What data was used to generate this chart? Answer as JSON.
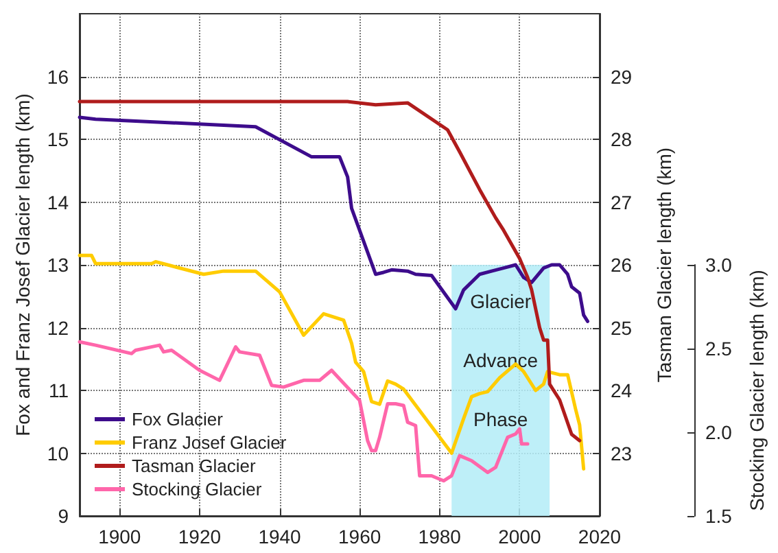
{
  "chart_data": {
    "type": "line",
    "ylabel": "Fox and Franz Josef Glacier length (km)",
    "y2label": "Tasman Glacier length (km)",
    "y3label": "Stocking Glacier length (km)",
    "xlim": [
      1890,
      2020
    ],
    "xticks": [
      1900,
      1920,
      1940,
      1960,
      1980,
      2000,
      2020
    ],
    "ylim": [
      9,
      17
    ],
    "yticks": [
      9,
      10,
      11,
      12,
      13,
      14,
      15,
      16
    ],
    "y2lim": [
      22,
      30
    ],
    "y2ticks": [
      23,
      24,
      25,
      26,
      27,
      28,
      29
    ],
    "y3lim": [
      1.5,
      3.0
    ],
    "y3ticks": [
      {
        "value": 1.5,
        "label": "1.5"
      },
      {
        "value": 2,
        "label": "2.0"
      },
      {
        "value": 2.5,
        "label": "2.5"
      },
      {
        "value": 3,
        "label": "3.0"
      }
    ],
    "grid": true,
    "legend": "bottom left",
    "marker": "none",
    "line_style": "solid",
    "bands": [
      {
        "axis": "x",
        "from": 1983,
        "to": 2007.5,
        "label": "Glacier Advance Phase",
        "color": "#b3ecf7"
      }
    ],
    "series": [
      {
        "name": "Fox Glacier",
        "color": "#3d0c8c",
        "x": [
          1890,
          1894,
          1934,
          1948,
          1955,
          1957,
          1958,
          1964,
          1966,
          1968,
          1972,
          1974,
          1978,
          1984,
          1986,
          1990,
          1993,
          1996,
          1999,
          2001,
          2003,
          2006,
          2008,
          2010,
          2012,
          2013,
          2015,
          2016,
          2017
        ],
        "values": [
          15.35,
          15.32,
          15.2,
          14.72,
          14.72,
          14.4,
          13.9,
          12.85,
          12.88,
          12.92,
          12.9,
          12.85,
          12.83,
          12.3,
          12.6,
          12.85,
          12.9,
          12.95,
          13.0,
          12.8,
          12.72,
          12.95,
          13.0,
          13.0,
          12.85,
          12.65,
          12.55,
          12.2,
          12.1
        ]
      },
      {
        "name": "Franz Josef Glacier",
        "color": "#ffcc00",
        "x": [
          1890,
          1893,
          1894,
          1908,
          1909,
          1912,
          1921,
          1926,
          1934,
          1940,
          1946,
          1951,
          1956,
          1958,
          1959,
          1961,
          1963,
          1965,
          1967,
          1969,
          1971,
          1983,
          1986,
          1988,
          1990,
          1992,
          1995,
          1999,
          2001,
          2004,
          2006,
          2007,
          2010,
          2012,
          2014,
          2015,
          2016
        ],
        "values": [
          13.15,
          13.15,
          13.02,
          13.02,
          13.05,
          13.0,
          12.85,
          12.9,
          12.9,
          12.57,
          11.88,
          12.22,
          12.12,
          11.75,
          11.45,
          11.3,
          10.82,
          10.78,
          11.15,
          11.1,
          11.02,
          10.0,
          10.55,
          10.9,
          10.95,
          10.98,
          11.2,
          11.42,
          11.3,
          11.0,
          11.1,
          11.3,
          11.25,
          11.25,
          10.7,
          10.45,
          9.75
        ]
      },
      {
        "name": "Tasman Glacier",
        "color": "#b01c1c",
        "axis": "y2",
        "x": [
          1890,
          1957,
          1964,
          1972,
          1982,
          1985,
          1990,
          1994,
          1996,
          2000,
          2002,
          2003,
          2005,
          2006,
          2007,
          2007.5,
          2010,
          2013,
          2015
        ],
        "values": [
          28.6,
          28.6,
          28.55,
          28.58,
          28.15,
          27.8,
          27.2,
          26.75,
          26.55,
          26.1,
          25.8,
          25.6,
          25.0,
          24.8,
          24.8,
          24.1,
          23.85,
          23.3,
          23.2
        ]
      },
      {
        "name": "Stocking Glacier",
        "color": "#ff66aa",
        "axis": "y3",
        "x": [
          1890,
          1894,
          1903,
          1904,
          1910,
          1911,
          1913,
          1920,
          1925,
          1929,
          1930,
          1935,
          1938,
          1941,
          1946,
          1950,
          1953,
          1960,
          1962,
          1963,
          1964,
          1965,
          1967,
          1969,
          1971,
          1972,
          1974,
          1975,
          1978,
          1981,
          1983,
          1985,
          1988,
          1992,
          1994,
          1997,
          1999,
          2000,
          2000.5,
          2002
        ],
        "values": [
          2.54,
          2.52,
          2.47,
          2.49,
          2.52,
          2.48,
          2.49,
          2.37,
          2.31,
          2.51,
          2.48,
          2.46,
          2.28,
          2.27,
          2.31,
          2.31,
          2.37,
          2.19,
          1.95,
          1.89,
          1.89,
          1.97,
          2.17,
          2.17,
          2.16,
          2.06,
          2.04,
          1.74,
          1.74,
          1.71,
          1.74,
          1.86,
          1.83,
          1.76,
          1.79,
          1.97,
          1.99,
          2.02,
          1.93,
          1.93
        ]
      }
    ]
  }
}
